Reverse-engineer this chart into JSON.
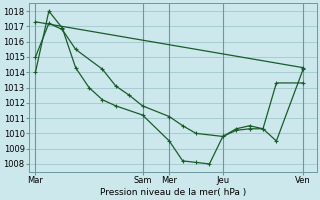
{
  "xlabel": "Pression niveau de la mer( hPa )",
  "bg_color": "#cce8ec",
  "grid_color": "#a0c8cc",
  "line_color": "#1a5c28",
  "ylim": [
    1007.5,
    1018.5
  ],
  "yticks": [
    1008,
    1009,
    1010,
    1011,
    1012,
    1013,
    1014,
    1015,
    1016,
    1017,
    1018
  ],
  "day_labels": [
    "Mar",
    "Sam",
    "Mer",
    "Jeu",
    "Ven"
  ],
  "day_x": [
    0,
    8,
    10,
    14,
    20
  ],
  "vline_x": [
    0,
    8,
    10,
    14,
    20
  ],
  "xlim": [
    -0.5,
    21.0
  ],
  "series1_x": [
    0,
    1,
    2,
    3,
    5,
    6,
    7,
    8,
    10,
    11,
    12,
    14,
    15,
    16,
    17,
    18,
    20
  ],
  "series1_y": [
    1015.0,
    1017.2,
    1016.8,
    1015.5,
    1014.2,
    1013.1,
    1012.5,
    1011.8,
    1011.1,
    1010.5,
    1010.0,
    1009.8,
    1010.3,
    1010.5,
    1010.3,
    1009.5,
    1014.2
  ],
  "series2_x": [
    0,
    1,
    2,
    3,
    4,
    5,
    6,
    8,
    10,
    11,
    12,
    13,
    14,
    15,
    16,
    17,
    18,
    20
  ],
  "series2_y": [
    1014.0,
    1018.0,
    1016.9,
    1014.3,
    1013.0,
    1012.2,
    1011.8,
    1011.2,
    1009.5,
    1008.2,
    1008.1,
    1008.0,
    1009.8,
    1010.2,
    1010.3,
    1010.3,
    1013.3,
    1013.3
  ],
  "series3_x": [
    0,
    20
  ],
  "series3_y": [
    1017.3,
    1014.3
  ]
}
